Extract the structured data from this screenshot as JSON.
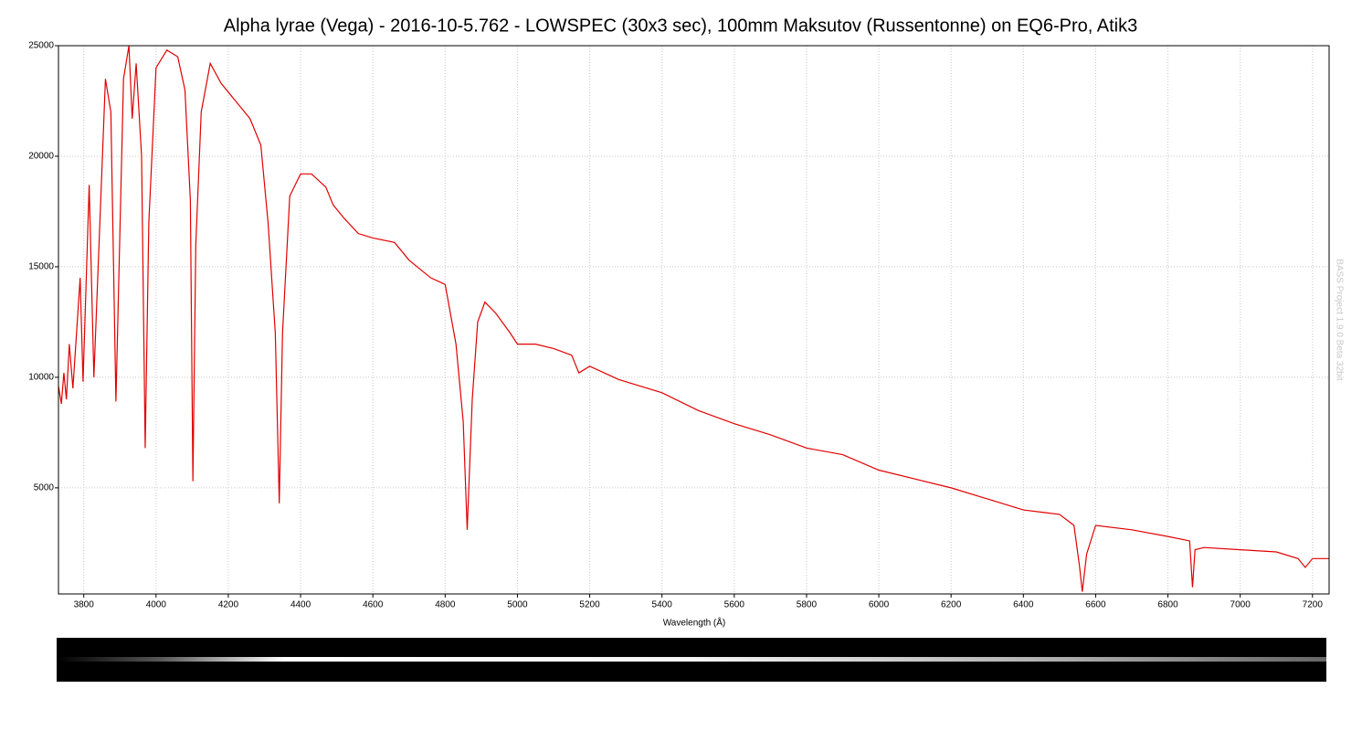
{
  "chart_data": {
    "type": "line",
    "title": "Alpha lyrae (Vega) - 2016-10-5.762 - LOWSPEC (30x3 sec), 100mm Maksutov (Russentonne) on EQ6-Pro, Atik3",
    "xlabel": "Wavelength (Å)",
    "watermark": "BASS Project 1.9.0 Beta 32bit",
    "color": "#e00000",
    "grid": true,
    "xlim": [
      3730,
      7246
    ],
    "ylim": [
      200,
      25000
    ],
    "xticks": [
      3800,
      4000,
      4200,
      4400,
      4600,
      4800,
      5000,
      5200,
      5400,
      5600,
      5800,
      6000,
      6200,
      6400,
      6600,
      6800,
      7000,
      7200
    ],
    "yticks": [
      5000,
      10000,
      15000,
      20000,
      25000
    ],
    "x": [
      3730,
      3738,
      3745,
      3752,
      3760,
      3770,
      3790,
      3798,
      3815,
      3828,
      3860,
      3875,
      3889,
      3910,
      3925,
      3934,
      3945,
      3960,
      3970,
      3980,
      4000,
      4030,
      4060,
      4080,
      4095,
      4102,
      4110,
      4125,
      4150,
      4180,
      4220,
      4260,
      4290,
      4310,
      4330,
      4341,
      4350,
      4370,
      4400,
      4430,
      4470,
      4490,
      4520,
      4560,
      4600,
      4660,
      4700,
      4760,
      4800,
      4830,
      4850,
      4861,
      4875,
      4890,
      4910,
      4940,
      4980,
      5000,
      5050,
      5100,
      5150,
      5170,
      5200,
      5280,
      5400,
      5500,
      5600,
      5700,
      5800,
      5900,
      6000,
      6100,
      6200,
      6280,
      6300,
      6400,
      6500,
      6540,
      6555,
      6563,
      6575,
      6600,
      6700,
      6800,
      6860,
      6868,
      6875,
      6900,
      7000,
      7100,
      7160,
      7180,
      7200,
      7246
    ],
    "values": [
      9600,
      8800,
      10200,
      9000,
      11500,
      9500,
      14500,
      9800,
      18700,
      10000,
      23500,
      22000,
      8900,
      23500,
      25000,
      21700,
      24200,
      20000,
      6800,
      17000,
      24000,
      24800,
      24500,
      23000,
      18000,
      5300,
      16000,
      22000,
      24200,
      23300,
      22500,
      21700,
      20500,
      17000,
      12000,
      4300,
      12000,
      18200,
      19200,
      19200,
      18600,
      17800,
      17200,
      16500,
      16300,
      16100,
      15300,
      14500,
      14200,
      11500,
      8000,
      3100,
      9000,
      12500,
      13400,
      12900,
      12000,
      11500,
      11500,
      11300,
      11000,
      10200,
      10500,
      9900,
      9300,
      8500,
      7900,
      7400,
      6800,
      6500,
      5800,
      5400,
      5000,
      4600,
      4500,
      4000,
      3800,
      3300,
      1500,
      300,
      2000,
      3300,
      3100,
      2800,
      2600,
      500,
      2200,
      2300,
      2200,
      2100,
      1800,
      1400,
      1800,
      1800
    ]
  }
}
